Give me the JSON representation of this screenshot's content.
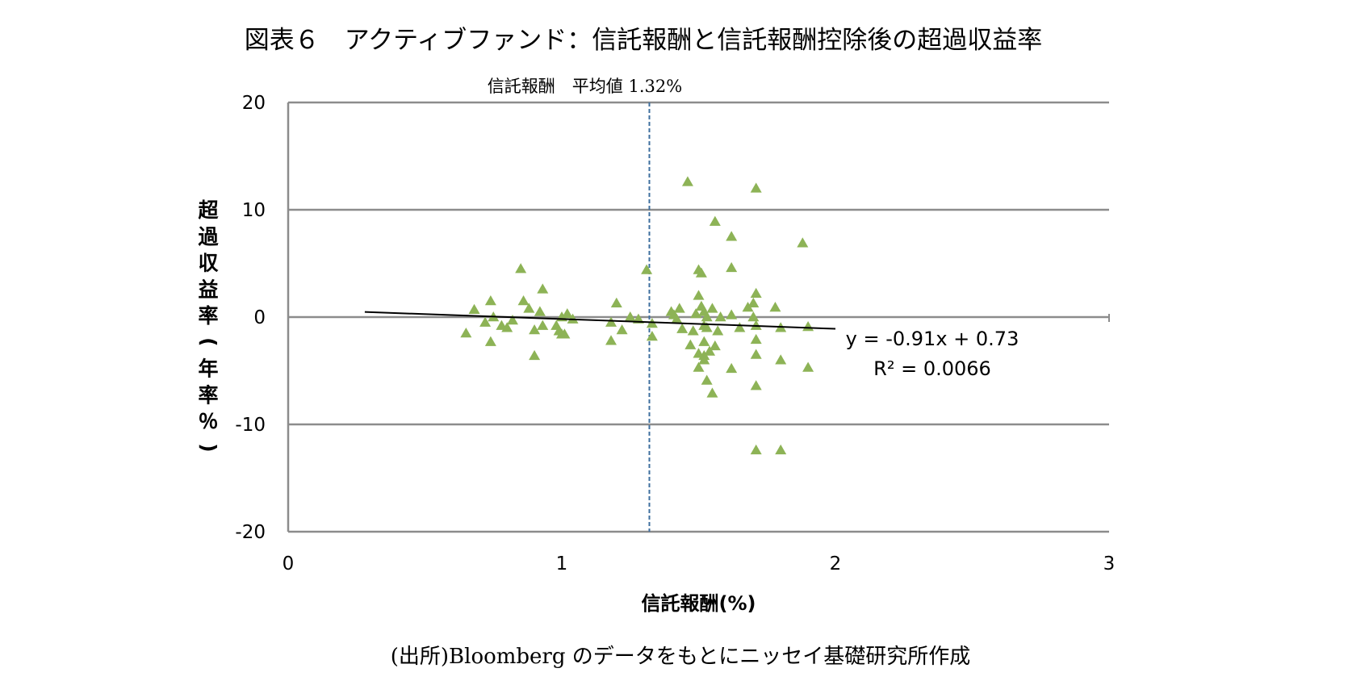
{
  "chart_data": {
    "type": "scatter",
    "title": "図表６　アクティブファンド：信託報酬と信託報酬控除後の超過収益率",
    "xlabel": "信託報酬(%)",
    "ylabel": "超過収益率(年率％)",
    "xlim": [
      0,
      3
    ],
    "ylim": [
      -20,
      20
    ],
    "x_ticks": [
      "0",
      "1",
      "2",
      "3"
    ],
    "y_ticks": [
      "-20",
      "-10",
      "0",
      "10",
      "20"
    ],
    "grid": "horizontal",
    "marker": "triangle",
    "marker_color": "#8db356",
    "mean_line": {
      "x": 1.32,
      "label": "信託報酬　平均値 1.32%",
      "color": "#3f6f9f"
    },
    "trendline": {
      "x_start": 0.28,
      "x_end": 2.0,
      "slope": -0.91,
      "intercept": 0.73,
      "equation": "y = -0.91x + 0.73",
      "r2": "R² = 0.0066"
    },
    "source": "(出所)Bloomberg のデータをもとにニッセイ基礎研究所作成",
    "points": [
      [
        0.65,
        -1.5
      ],
      [
        0.68,
        0.7
      ],
      [
        0.72,
        -0.5
      ],
      [
        0.74,
        1.5
      ],
      [
        0.74,
        -2.3
      ],
      [
        0.75,
        0.0
      ],
      [
        0.78,
        -0.8
      ],
      [
        0.8,
        -1.0
      ],
      [
        0.82,
        -0.3
      ],
      [
        0.85,
        4.5
      ],
      [
        0.86,
        1.5
      ],
      [
        0.88,
        0.8
      ],
      [
        0.9,
        -1.2
      ],
      [
        0.9,
        -3.6
      ],
      [
        0.92,
        0.5
      ],
      [
        0.93,
        2.6
      ],
      [
        0.93,
        -0.8
      ],
      [
        0.98,
        -0.8
      ],
      [
        0.99,
        -1.3
      ],
      [
        1.0,
        -1.6
      ],
      [
        1.0,
        0.0
      ],
      [
        1.01,
        -1.6
      ],
      [
        1.02,
        0.3
      ],
      [
        1.04,
        -0.2
      ],
      [
        1.18,
        -0.5
      ],
      [
        1.18,
        -2.2
      ],
      [
        1.2,
        1.3
      ],
      [
        1.22,
        -1.2
      ],
      [
        1.25,
        0.0
      ],
      [
        1.28,
        -0.2
      ],
      [
        1.31,
        4.4
      ],
      [
        1.33,
        -1.8
      ],
      [
        1.33,
        -0.6
      ],
      [
        1.4,
        0.5
      ],
      [
        1.41,
        0.2
      ],
      [
        1.42,
        -0.2
      ],
      [
        1.43,
        0.8
      ],
      [
        1.44,
        -1.1
      ],
      [
        1.46,
        12.6
      ],
      [
        1.47,
        -2.6
      ],
      [
        1.48,
        -1.3
      ],
      [
        1.49,
        0.3
      ],
      [
        1.5,
        4.4
      ],
      [
        1.5,
        2.0
      ],
      [
        1.5,
        -3.4
      ],
      [
        1.5,
        -4.7
      ],
      [
        1.51,
        4.1
      ],
      [
        1.51,
        1.0
      ],
      [
        1.52,
        0.5
      ],
      [
        1.52,
        -0.8
      ],
      [
        1.52,
        -2.3
      ],
      [
        1.52,
        -3.6
      ],
      [
        1.52,
        -4.0
      ],
      [
        1.53,
        0.0
      ],
      [
        1.53,
        -1.0
      ],
      [
        1.53,
        -5.9
      ],
      [
        1.54,
        -3.2
      ],
      [
        1.55,
        -7.1
      ],
      [
        1.55,
        0.8
      ],
      [
        1.56,
        8.9
      ],
      [
        1.56,
        -2.7
      ],
      [
        1.57,
        -1.3
      ],
      [
        1.58,
        0.0
      ],
      [
        1.62,
        7.5
      ],
      [
        1.62,
        4.6
      ],
      [
        1.62,
        0.2
      ],
      [
        1.62,
        -4.8
      ],
      [
        1.65,
        -1.0
      ],
      [
        1.68,
        0.9
      ],
      [
        1.7,
        1.3
      ],
      [
        1.7,
        0.0
      ],
      [
        1.71,
        12.0
      ],
      [
        1.71,
        2.2
      ],
      [
        1.71,
        -0.8
      ],
      [
        1.71,
        -2.1
      ],
      [
        1.71,
        -3.5
      ],
      [
        1.71,
        -6.4
      ],
      [
        1.71,
        -12.4
      ],
      [
        1.78,
        0.9
      ],
      [
        1.8,
        -4.0
      ],
      [
        1.8,
        -12.4
      ],
      [
        1.8,
        -1.0
      ],
      [
        1.88,
        6.9
      ],
      [
        1.9,
        -0.9
      ],
      [
        1.9,
        -4.7
      ]
    ]
  }
}
